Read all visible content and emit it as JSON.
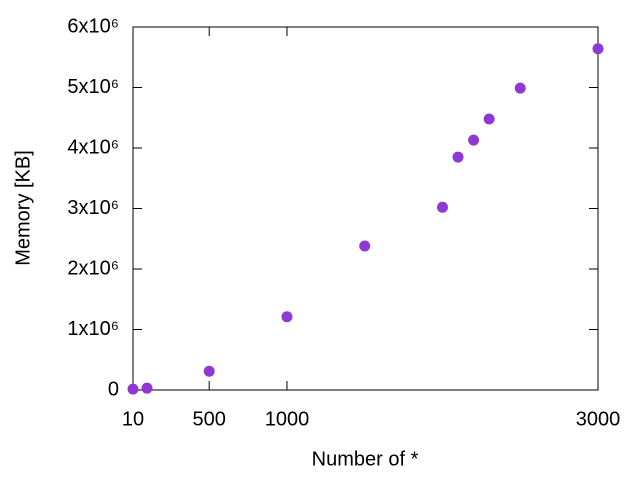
{
  "chart_data": {
    "type": "scatter",
    "xlabel": "Number of *",
    "ylabel": "Memory [KB]",
    "series": [
      {
        "color": "#9038d4",
        "x": [
          10,
          100,
          500,
          1000,
          1500,
          2000,
          2100,
          2200,
          2300,
          2500,
          3000
        ],
        "values": [
          15000,
          30000,
          310000,
          1210000,
          2380000,
          3020000,
          3850000,
          4130000,
          4480000,
          4990000,
          5640000
        ]
      }
    ],
    "xlim": [
      10,
      3000
    ],
    "xticks": [
      10,
      500,
      1000,
      3000
    ],
    "ylim": [
      0,
      6000000
    ],
    "yticks": [
      0,
      {
        "value": 1000000,
        "label": "1x10⁶"
      },
      {
        "value": 2000000,
        "label": "2x10⁶"
      },
      {
        "value": 3000000,
        "label": "3x10⁶"
      },
      {
        "value": 4000000,
        "label": "4x10⁶"
      },
      {
        "value": 5000000,
        "label": "5x10⁶"
      },
      {
        "value": 6000000,
        "label": "6x10⁶"
      }
    ],
    "grid": false
  }
}
